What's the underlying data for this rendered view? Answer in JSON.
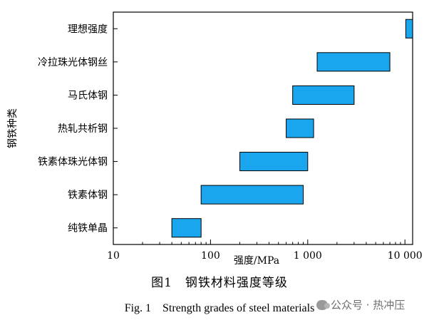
{
  "chart_data": {
    "type": "bar",
    "orientation": "horizontal-range",
    "xscale": "log",
    "xlim": [
      10,
      12000
    ],
    "xlabel": "强度/MPa",
    "ylabel": "钢铁种类",
    "xticks": [
      {
        "value": 10,
        "label": "10"
      },
      {
        "value": 100,
        "label": "100"
      },
      {
        "value": 1000,
        "label": "1 000"
      },
      {
        "value": 10000,
        "label": "10 000"
      }
    ],
    "categories": [
      "理想强度",
      "冷拉珠光体钢丝",
      "马氏体钢",
      "热轧共析钢",
      "铁素体珠光体钢",
      "铁素体钢",
      "纯铁单晶"
    ],
    "ranges": [
      [
        10200,
        12500
      ],
      [
        1250,
        7000
      ],
      [
        700,
        3000
      ],
      [
        600,
        1150
      ],
      [
        200,
        1000
      ],
      [
        80,
        900
      ],
      [
        40,
        80
      ]
    ],
    "bar_color": "#1aa6ee",
    "grid": false
  },
  "caption": {
    "cn": "图1　钢铁材料强度等级",
    "en": "Fig. 1　Strength grades of steel materials"
  },
  "watermark": {
    "icon": "wechat-icon",
    "text": "公众号 · 热冲压"
  }
}
